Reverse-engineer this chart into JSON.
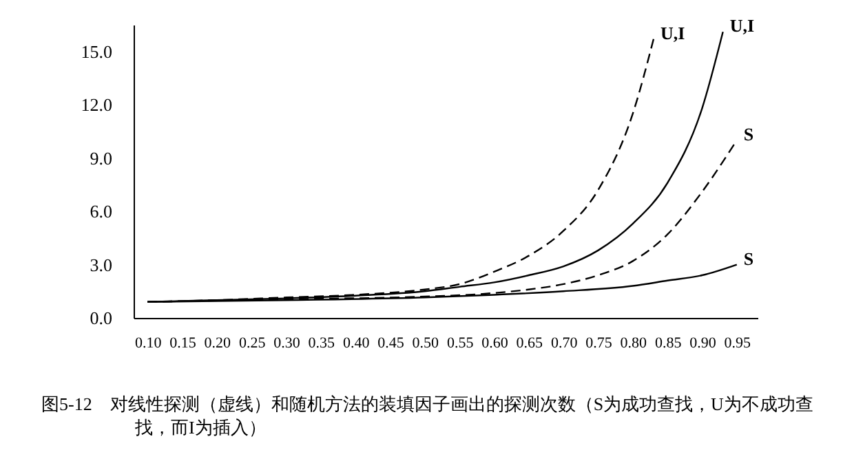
{
  "chart_data": {
    "type": "line",
    "annotations": [
      "图5-12　对线性探测（虚线）和随机方法的装填因子画出的探测次数（S为成功查找，U为不成功查找，而I为插入）"
    ],
    "series": [
      {
        "name": "U,I",
        "color": "#000000",
        "line_style": "dashed",
        "x": [
          0.1,
          0.2,
          0.3,
          0.4,
          0.5,
          0.55,
          0.6,
          0.65,
          0.7,
          0.75,
          0.8,
          0.83
        ],
        "values": [
          0.9,
          1.0,
          1.15,
          1.3,
          1.6,
          1.9,
          2.6,
          3.5,
          4.9,
          7.2,
          11.5,
          15.7
        ]
      },
      {
        "name": "U,I",
        "color": "#000000",
        "line_style": "solid",
        "x": [
          0.1,
          0.2,
          0.3,
          0.4,
          0.5,
          0.55,
          0.6,
          0.65,
          0.7,
          0.75,
          0.8,
          0.85,
          0.9,
          0.93
        ],
        "values": [
          0.9,
          1.0,
          1.1,
          1.25,
          1.5,
          1.75,
          2.0,
          2.4,
          2.9,
          3.8,
          5.3,
          7.6,
          11.8,
          16.1
        ]
      },
      {
        "name": "S",
        "color": "#000000",
        "line_style": "dashed",
        "x": [
          0.1,
          0.3,
          0.5,
          0.6,
          0.65,
          0.7,
          0.75,
          0.8,
          0.85,
          0.9,
          0.95
        ],
        "values": [
          0.9,
          1.05,
          1.2,
          1.4,
          1.6,
          1.9,
          2.4,
          3.2,
          4.7,
          7.1,
          10.0
        ]
      },
      {
        "name": "S",
        "color": "#000000",
        "line_style": "solid",
        "x": [
          0.1,
          0.3,
          0.5,
          0.6,
          0.7,
          0.8,
          0.85,
          0.9,
          0.95
        ],
        "values": [
          0.9,
          1.0,
          1.15,
          1.3,
          1.5,
          1.8,
          2.1,
          2.4,
          3.0
        ]
      }
    ],
    "xlim": [
      0.08,
      0.98
    ],
    "xticks": [
      {
        "value": 0.1,
        "label": "0.10"
      },
      {
        "value": 0.15,
        "label": "0.15"
      },
      {
        "value": 0.2,
        "label": "0.20"
      },
      {
        "value": 0.25,
        "label": "0.25"
      },
      {
        "value": 0.3,
        "label": "0.30"
      },
      {
        "value": 0.35,
        "label": "0.35"
      },
      {
        "value": 0.4,
        "label": "0.40"
      },
      {
        "value": 0.45,
        "label": "0.45"
      },
      {
        "value": 0.5,
        "label": "0.50"
      },
      {
        "value": 0.55,
        "label": "0.55"
      },
      {
        "value": 0.6,
        "label": "0.60"
      },
      {
        "value": 0.65,
        "label": "0.65"
      },
      {
        "value": 0.7,
        "label": "0.70"
      },
      {
        "value": 0.75,
        "label": "0.75"
      },
      {
        "value": 0.8,
        "label": "0.80"
      },
      {
        "value": 0.85,
        "label": "0.85"
      },
      {
        "value": 0.9,
        "label": "0.90"
      },
      {
        "value": 0.95,
        "label": "0.95"
      }
    ],
    "ylim": [
      0,
      16.5
    ],
    "yticks": [
      {
        "value": 0,
        "label": "0.0"
      },
      {
        "value": 3,
        "label": "3.0"
      },
      {
        "value": 6,
        "label": "6.0"
      },
      {
        "value": 9,
        "label": "9.0"
      },
      {
        "value": 12,
        "label": "12.0"
      },
      {
        "value": 15,
        "label": "15.0"
      }
    ],
    "grid": false,
    "legend": false,
    "marker": "none"
  }
}
